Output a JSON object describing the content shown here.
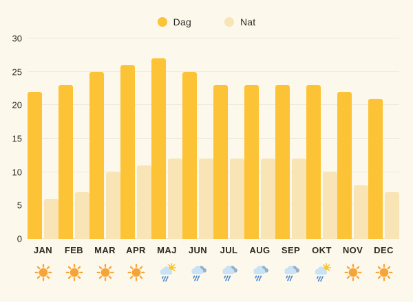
{
  "legend": {
    "items": [
      {
        "label": "Dag",
        "color": "#FDC336"
      },
      {
        "label": "Nat",
        "color": "#F8E4B4"
      }
    ]
  },
  "chart_data": {
    "type": "bar",
    "title": "",
    "categories": [
      "JAN",
      "FEB",
      "MAR",
      "APR",
      "MAJ",
      "JUN",
      "JUL",
      "AUG",
      "SEP",
      "OKT",
      "NOV",
      "DEC"
    ],
    "series": [
      {
        "name": "Dag",
        "color": "#FDC336",
        "values": [
          22,
          23,
          25,
          26,
          27,
          25,
          23,
          23,
          23,
          23,
          22,
          21
        ]
      },
      {
        "name": "Nat",
        "color": "#F8E4B4",
        "values": [
          6,
          7,
          10,
          11,
          12,
          12,
          12,
          12,
          12,
          10,
          8,
          7
        ]
      }
    ],
    "month_icons": [
      "sun",
      "sun",
      "sun",
      "sun",
      "sun-rain",
      "rain",
      "rain",
      "rain",
      "rain",
      "sun-rain",
      "sun",
      "sun"
    ],
    "xlabel": "",
    "ylabel": "",
    "ylim": [
      0,
      30
    ],
    "yticks": [
      0,
      5,
      10,
      15,
      20,
      25,
      30
    ],
    "grid": true,
    "legend_position": "top-center"
  },
  "colors": {
    "background": "#FDF8EC",
    "gridline": "#EDE7D7",
    "text": "#2D2A24",
    "sun": "#F5A439",
    "sun_bright": "#FBC531",
    "cloud_front": "#C9E2F5",
    "cloud_back": "#94AECB",
    "raindrop": "#4D8BD1"
  }
}
